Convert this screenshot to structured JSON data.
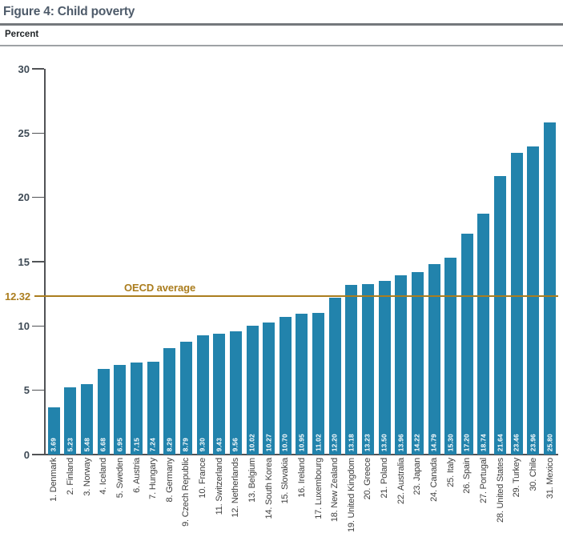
{
  "figure": {
    "title": "Figure 4: Child poverty",
    "unit_label": "Percent"
  },
  "chart_data": {
    "type": "bar",
    "title": "Figure 4: Child poverty",
    "ylabel": "Percent",
    "xlabel": "",
    "ylim": [
      0,
      30
    ],
    "yticks": [
      0,
      5,
      10,
      15,
      20,
      25,
      30
    ],
    "grid": false,
    "legend": false,
    "bar_color": "#2283ac",
    "categories": [
      "1. Denmark",
      "2. Finland",
      "3. Norway",
      "4. Iceland",
      "5. Sweden",
      "6. Austria",
      "7. Hungary",
      "8. Germany",
      "9. Czech Republic",
      "10. France",
      "11. Switzerland",
      "12. Netherlands",
      "13. Belgium",
      "14. South Korea",
      "15. Slovakia",
      "16. Ireland",
      "17. Luxembourg",
      "18. New Zealand",
      "19. United Kingdom",
      "20. Greece",
      "21. Poland",
      "22. Australia",
      "23. Japan",
      "24. Canada",
      "25. Italy",
      "26. Spain",
      "27. Portugal",
      "28. United States",
      "29. Turkey",
      "30. Chile",
      "31. Mexico"
    ],
    "values": [
      3.69,
      5.23,
      5.48,
      6.68,
      6.95,
      7.15,
      7.24,
      8.29,
      8.79,
      9.3,
      9.43,
      9.56,
      10.02,
      10.27,
      10.7,
      10.95,
      11.02,
      12.2,
      13.18,
      13.23,
      13.5,
      13.96,
      14.22,
      14.79,
      15.3,
      17.2,
      18.74,
      21.64,
      23.46,
      23.96,
      25.8
    ],
    "reference_line": {
      "label": "OECD average",
      "value": 12.32,
      "display": "12.32",
      "color": "#ab7d1e"
    }
  },
  "colors": {
    "title": "#4e5b6a",
    "axis": "#515356",
    "tick_label": "#3e4a55",
    "bar": "#2283ac",
    "bar_value_label": "#ffffff",
    "x_label": "#3f3f3f",
    "reference": "#ab7d1e"
  }
}
